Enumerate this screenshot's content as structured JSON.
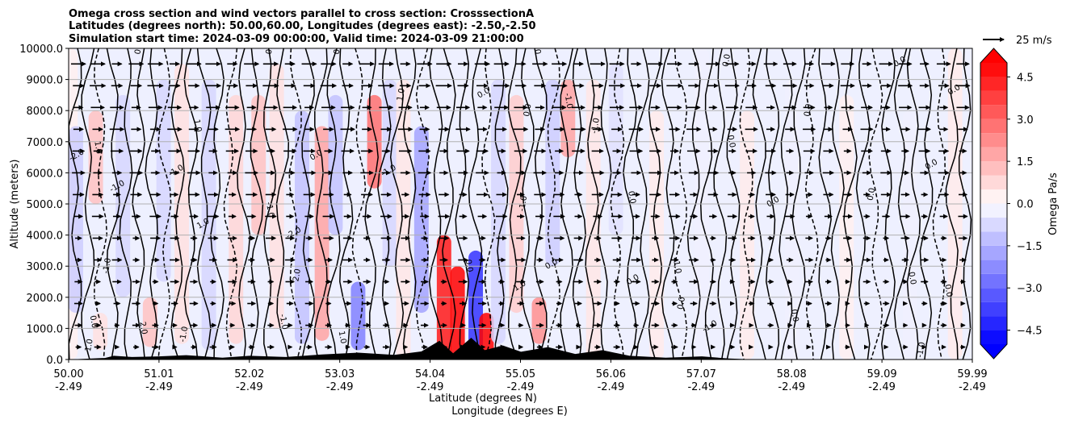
{
  "chart_data": {
    "type": "heatmap",
    "title_lines": [
      "Omega cross section and wind vectors parallel to cross section: CrosssectionA",
      "Latitudes (degrees north): 50.00,60.00, Longitudes (degrees east): -2.50,-2.50",
      "Simulation start time: 2024-03-09 00:00:00, Valid time: 2024-03-09 21:00:00"
    ],
    "ylabel": "Altitude (meters)",
    "xlabel_lat": "Latitude (degrees N)",
    "xlabel_lon": "Longitude (degrees E)",
    "ylim": [
      0,
      10000
    ],
    "y_ticks": [
      "0.0",
      "1000.0",
      "2000.0",
      "3000.0",
      "4000.0",
      "5000.0",
      "6000.0",
      "7000.0",
      "8000.0",
      "9000.0",
      "10000.0"
    ],
    "x_ticks": [
      {
        "lat": "50.00",
        "lon": "-2.49"
      },
      {
        "lat": "51.01",
        "lon": "-2.49"
      },
      {
        "lat": "52.02",
        "lon": "-2.49"
      },
      {
        "lat": "53.03",
        "lon": "-2.49"
      },
      {
        "lat": "54.04",
        "lon": "-2.49"
      },
      {
        "lat": "55.05",
        "lon": "-2.49"
      },
      {
        "lat": "56.06",
        "lon": "-2.49"
      },
      {
        "lat": "57.07",
        "lon": "-2.49"
      },
      {
        "lat": "58.08",
        "lon": "-2.49"
      },
      {
        "lat": "59.09",
        "lon": "-2.49"
      },
      {
        "lat": "59.99",
        "lon": "-2.49"
      }
    ],
    "xlim": [
      50.0,
      59.99
    ],
    "grid": "horizontal",
    "colorbar": {
      "label": "Omega Pa/s",
      "range": [
        -5.0,
        5.0
      ],
      "tick_values": [
        -4.5,
        -3.0,
        -1.5,
        0.0,
        1.5,
        3.0,
        4.5
      ],
      "tick_labels": [
        "−4.5",
        "−3.0",
        "−1.5",
        "0.0",
        "1.5",
        "3.0",
        "4.5"
      ],
      "levels": [
        -5.0,
        -4.5,
        -4.0,
        -3.5,
        -3.0,
        -2.5,
        -2.0,
        -1.5,
        -1.0,
        -0.5,
        0.0,
        0.5,
        1.0,
        1.5,
        2.0,
        2.5,
        3.0,
        3.5,
        4.0,
        4.5,
        5.0
      ],
      "extend": "both",
      "colors": {
        "negative": "#0000ff",
        "zero": "#ffffff",
        "positive": "#ff0000"
      }
    },
    "quiver_key": {
      "label": "25 m/s",
      "speed": 25
    },
    "omega_columns": [
      {
        "lat": 50.02,
        "ymin": 0,
        "ymax": 10000,
        "value": 0.3
      },
      {
        "lat": 50.08,
        "ymin": 1500,
        "ymax": 7500,
        "value": -1.0
      },
      {
        "lat": 50.3,
        "ymin": 5000,
        "ymax": 8000,
        "value": 1.2
      },
      {
        "lat": 50.35,
        "ymin": 300,
        "ymax": 1500,
        "value": 0.6
      },
      {
        "lat": 50.6,
        "ymin": 2000,
        "ymax": 8500,
        "value": -0.8
      },
      {
        "lat": 50.9,
        "ymin": 400,
        "ymax": 2000,
        "value": 1.2
      },
      {
        "lat": 51.05,
        "ymin": 2500,
        "ymax": 9000,
        "value": -0.8
      },
      {
        "lat": 51.25,
        "ymin": 500,
        "ymax": 9500,
        "value": 0.6
      },
      {
        "lat": 51.55,
        "ymin": 300,
        "ymax": 9000,
        "value": -0.8
      },
      {
        "lat": 51.85,
        "ymin": 500,
        "ymax": 8500,
        "value": 0.8
      },
      {
        "lat": 52.1,
        "ymin": 4000,
        "ymax": 8500,
        "value": 1.2
      },
      {
        "lat": 52.3,
        "ymin": 1000,
        "ymax": 9500,
        "value": 0.6
      },
      {
        "lat": 52.58,
        "ymin": 500,
        "ymax": 8000,
        "value": -1.2
      },
      {
        "lat": 52.8,
        "ymin": 600,
        "ymax": 7500,
        "value": 1.8
      },
      {
        "lat": 52.95,
        "ymin": 4000,
        "ymax": 8500,
        "value": -1.2
      },
      {
        "lat": 53.2,
        "ymin": 300,
        "ymax": 2500,
        "value": -2.5
      },
      {
        "lat": 53.38,
        "ymin": 5500,
        "ymax": 8500,
        "value": 2.8
      },
      {
        "lat": 53.55,
        "ymin": 3000,
        "ymax": 9000,
        "value": -0.8
      },
      {
        "lat": 53.7,
        "ymin": 0,
        "ymax": 9000,
        "value": 0.5
      },
      {
        "lat": 53.9,
        "ymin": 1500,
        "ymax": 7500,
        "value": -1.8
      },
      {
        "lat": 54.15,
        "ymin": 0,
        "ymax": 4000,
        "value": 4.5
      },
      {
        "lat": 54.3,
        "ymin": 0,
        "ymax": 3000,
        "value": 5.0
      },
      {
        "lat": 54.5,
        "ymin": 0,
        "ymax": 3500,
        "value": -4.0
      },
      {
        "lat": 54.62,
        "ymin": 0,
        "ymax": 1500,
        "value": 5.0
      },
      {
        "lat": 54.75,
        "ymin": 500,
        "ymax": 9000,
        "value": -0.8
      },
      {
        "lat": 54.95,
        "ymin": 1500,
        "ymax": 8500,
        "value": 1.0
      },
      {
        "lat": 55.2,
        "ymin": 500,
        "ymax": 2000,
        "value": 2.2
      },
      {
        "lat": 55.35,
        "ymin": 3000,
        "ymax": 9000,
        "value": -1.0
      },
      {
        "lat": 55.52,
        "ymin": 6500,
        "ymax": 9000,
        "value": 1.8
      },
      {
        "lat": 55.8,
        "ymin": 0,
        "ymax": 9000,
        "value": 0.5
      },
      {
        "lat": 56.05,
        "ymin": 4000,
        "ymax": 9500,
        "value": -0.6
      },
      {
        "lat": 56.5,
        "ymin": 0,
        "ymax": 8000,
        "value": 0.4
      },
      {
        "lat": 57.0,
        "ymin": 0,
        "ymax": 10000,
        "value": -0.3
      },
      {
        "lat": 57.5,
        "ymin": 0,
        "ymax": 8000,
        "value": 0.4
      },
      {
        "lat": 58.0,
        "ymin": 0,
        "ymax": 9000,
        "value": -0.3
      },
      {
        "lat": 58.6,
        "ymin": 0,
        "ymax": 8500,
        "value": 0.3
      },
      {
        "lat": 59.3,
        "ymin": 0,
        "ymax": 8000,
        "value": -0.3
      },
      {
        "lat": 59.8,
        "ymin": 0,
        "ymax": 10000,
        "value": 0.4
      }
    ],
    "terrain": [
      {
        "lat": 50.0,
        "alt": 0
      },
      {
        "lat": 50.4,
        "alt": 50
      },
      {
        "lat": 50.5,
        "alt": 120
      },
      {
        "lat": 50.7,
        "alt": 80
      },
      {
        "lat": 51.0,
        "alt": 100
      },
      {
        "lat": 51.3,
        "alt": 140
      },
      {
        "lat": 51.7,
        "alt": 60
      },
      {
        "lat": 52.0,
        "alt": 120
      },
      {
        "lat": 52.4,
        "alt": 80
      },
      {
        "lat": 52.8,
        "alt": 160
      },
      {
        "lat": 53.2,
        "alt": 220
      },
      {
        "lat": 53.6,
        "alt": 150
      },
      {
        "lat": 53.9,
        "alt": 260
      },
      {
        "lat": 54.1,
        "alt": 600
      },
      {
        "lat": 54.25,
        "alt": 200
      },
      {
        "lat": 54.45,
        "alt": 700
      },
      {
        "lat": 54.6,
        "alt": 300
      },
      {
        "lat": 54.8,
        "alt": 450
      },
      {
        "lat": 55.0,
        "alt": 250
      },
      {
        "lat": 55.3,
        "alt": 400
      },
      {
        "lat": 55.6,
        "alt": 180
      },
      {
        "lat": 55.9,
        "alt": 300
      },
      {
        "lat": 56.2,
        "alt": 120
      },
      {
        "lat": 56.6,
        "alt": 60
      },
      {
        "lat": 57.0,
        "alt": 100
      },
      {
        "lat": 57.3,
        "alt": 30
      },
      {
        "lat": 57.6,
        "alt": 0
      },
      {
        "lat": 59.99,
        "alt": 0
      }
    ],
    "contour_labels": [
      {
        "text": "-1.0",
        "lat": 50.25,
        "alt": 400
      },
      {
        "text": "1.0",
        "lat": 50.3,
        "alt": 6800
      },
      {
        "text": "-2.0",
        "lat": 50.1,
        "alt": 6500
      },
      {
        "text": "-1.0",
        "lat": 50.45,
        "alt": 3000
      },
      {
        "text": "0.0",
        "lat": 50.25,
        "alt": 1200
      },
      {
        "text": "-1.0",
        "lat": 50.55,
        "alt": 5500
      },
      {
        "text": "0.0",
        "lat": 50.8,
        "alt": 10000
      },
      {
        "text": "2.0",
        "lat": 50.8,
        "alt": 1000
      },
      {
        "text": "-1.0",
        "lat": 51.2,
        "alt": 6000
      },
      {
        "text": "-1.0",
        "lat": 51.3,
        "alt": 800
      },
      {
        "text": "1.0",
        "lat": 51.4,
        "alt": 7500
      },
      {
        "text": "1.0",
        "lat": 51.5,
        "alt": 4300
      },
      {
        "text": "0.0",
        "lat": 52.25,
        "alt": 10000
      },
      {
        "text": "-1.0",
        "lat": 52.35,
        "alt": 1200
      },
      {
        "text": "-2.0",
        "lat": 52.5,
        "alt": 4000
      },
      {
        "text": "2.0",
        "lat": 52.55,
        "alt": 2700
      },
      {
        "text": "-1.0",
        "lat": 52.2,
        "alt": 4800
      },
      {
        "text": "0.0",
        "lat": 52.75,
        "alt": 6500
      },
      {
        "text": "0.0",
        "lat": 53.0,
        "alt": 10000
      },
      {
        "text": "1.0",
        "lat": 53.0,
        "alt": 700
      },
      {
        "text": "-1.0",
        "lat": 53.55,
        "alt": 6000
      },
      {
        "text": "1.0",
        "lat": 53.7,
        "alt": 8500
      },
      {
        "text": "0.0",
        "lat": 54.4,
        "alt": 3000
      },
      {
        "text": "0.0",
        "lat": 54.6,
        "alt": 8500
      },
      {
        "text": "-1.0",
        "lat": 55.05,
        "alt": 5000
      },
      {
        "text": "0.0",
        "lat": 55.15,
        "alt": 10000
      },
      {
        "text": "1.0",
        "lat": 55.0,
        "alt": 2300
      },
      {
        "text": "0.0",
        "lat": 55.1,
        "alt": 8000
      },
      {
        "text": "-1.0",
        "lat": 55.5,
        "alt": 8300
      },
      {
        "text": "0.0",
        "lat": 55.35,
        "alt": 3000
      },
      {
        "text": "-1.0",
        "lat": 55.85,
        "alt": 7500
      },
      {
        "text": "0.0",
        "lat": 56.2,
        "alt": 5200
      },
      {
        "text": "0.0",
        "lat": 56.25,
        "alt": 2500
      },
      {
        "text": "0.0",
        "lat": 56.8,
        "alt": 1800
      },
      {
        "text": "-1.0",
        "lat": 56.7,
        "alt": 3000
      },
      {
        "text": "-1.0",
        "lat": 57.1,
        "alt": 1000
      },
      {
        "text": "0.0",
        "lat": 57.3,
        "alt": 9600
      },
      {
        "text": "0.0",
        "lat": 57.3,
        "alt": 7000
      },
      {
        "text": "0.0",
        "lat": 57.8,
        "alt": 5000
      },
      {
        "text": "0.0",
        "lat": 58.2,
        "alt": 8000
      },
      {
        "text": "0.0",
        "lat": 58.0,
        "alt": 1400
      },
      {
        "text": "0.0",
        "lat": 59.2,
        "alt": 9500
      },
      {
        "text": "0.0",
        "lat": 58.9,
        "alt": 5300
      },
      {
        "text": "0.0",
        "lat": 59.3,
        "alt": 2600
      },
      {
        "text": "0.0",
        "lat": 59.55,
        "alt": 6200
      },
      {
        "text": "-1.0",
        "lat": 59.45,
        "alt": 300
      },
      {
        "text": "0.0",
        "lat": 59.7,
        "alt": 2200
      },
      {
        "text": "0.0",
        "lat": 59.8,
        "alt": 8600
      }
    ]
  }
}
